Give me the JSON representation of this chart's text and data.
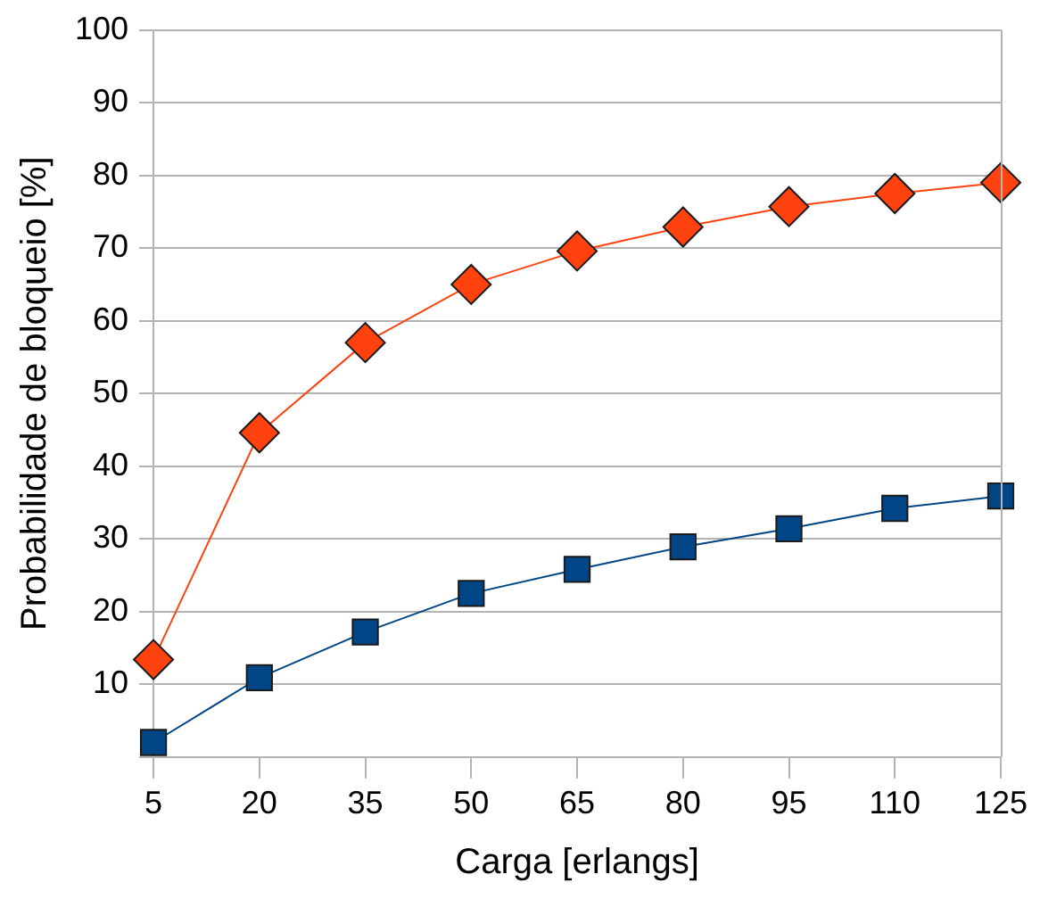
{
  "chart_data": {
    "type": "line",
    "xlabel": "Carga [erlangs]",
    "ylabel": "Probabilidade de bloqueio [%]",
    "categories": [
      "5",
      "20",
      "35",
      "50",
      "65",
      "80",
      "95",
      "110",
      "125"
    ],
    "series": [
      {
        "color": "#ff420e",
        "marker": "diamond",
        "values": [
          13.4,
          44.6,
          57,
          65,
          69.6,
          72.9,
          75.7,
          77.5,
          79
        ]
      },
      {
        "color": "#004586",
        "marker": "square",
        "values": [
          2,
          10.9,
          17.2,
          22.5,
          25.8,
          28.9,
          31.4,
          34.2,
          35.9
        ]
      }
    ],
    "ylim": [
      0,
      100
    ],
    "yticks": [
      {
        "value": 0,
        "label": null
      },
      10,
      20,
      30,
      40,
      50,
      60,
      70,
      80,
      90,
      100
    ],
    "grid": "y",
    "legend": false
  }
}
